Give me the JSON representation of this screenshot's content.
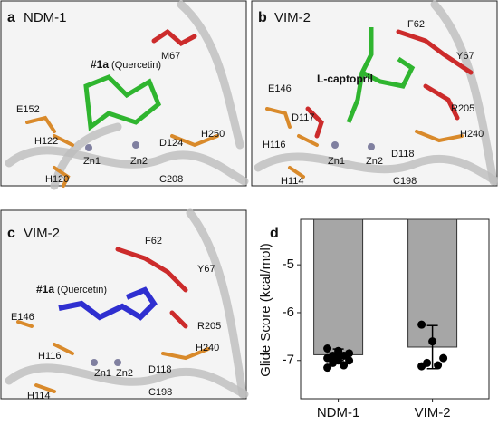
{
  "panels": [
    {
      "letter": "a",
      "title": "NDM-1",
      "ligand": "#1a",
      "ligand_note": "(Quercetin)",
      "residues": [
        "M67",
        "E152",
        "H122",
        "Zn1",
        "Zn2",
        "D124",
        "H250",
        "H120",
        "C208"
      ]
    },
    {
      "letter": "b",
      "title": "VIM-2",
      "ligand": "L-captopril",
      "residues": [
        "F62",
        "Y67",
        "E146",
        "D117",
        "R205",
        "H240",
        "H116",
        "Zn1",
        "Zn2",
        "D118",
        "H114",
        "C198"
      ]
    },
    {
      "letter": "c",
      "title": "VIM-2",
      "ligand": "#1a",
      "ligand_note": "(Quercetin)",
      "residues": [
        "F62",
        "Y67",
        "E146",
        "R205",
        "H240",
        "H116",
        "Zn1",
        "Zn2",
        "D118",
        "H114",
        "C198"
      ]
    }
  ],
  "chart_data": {
    "type": "bar",
    "letter": "d",
    "ylabel": "Glide Score (kcal/mol)",
    "categories": [
      "NDM-1",
      "VIM-2"
    ],
    "values": [
      -6.88,
      -6.72
    ],
    "errors": [
      0.12,
      0.45
    ],
    "points": [
      [
        -6.75,
        -6.8,
        -6.85,
        -6.9,
        -6.9,
        -6.95,
        -7.0,
        -7.0,
        -7.05,
        -7.1,
        -7.15,
        -6.85
      ],
      [
        -6.25,
        -6.6,
        -6.95,
        -7.05,
        -7.1,
        -7.12
      ]
    ],
    "color": "#a6a6a6",
    "point_color": "#000000",
    "ylim": [
      -7.8,
      -4.05
    ],
    "yticks": [
      -5,
      -6,
      -7
    ]
  }
}
